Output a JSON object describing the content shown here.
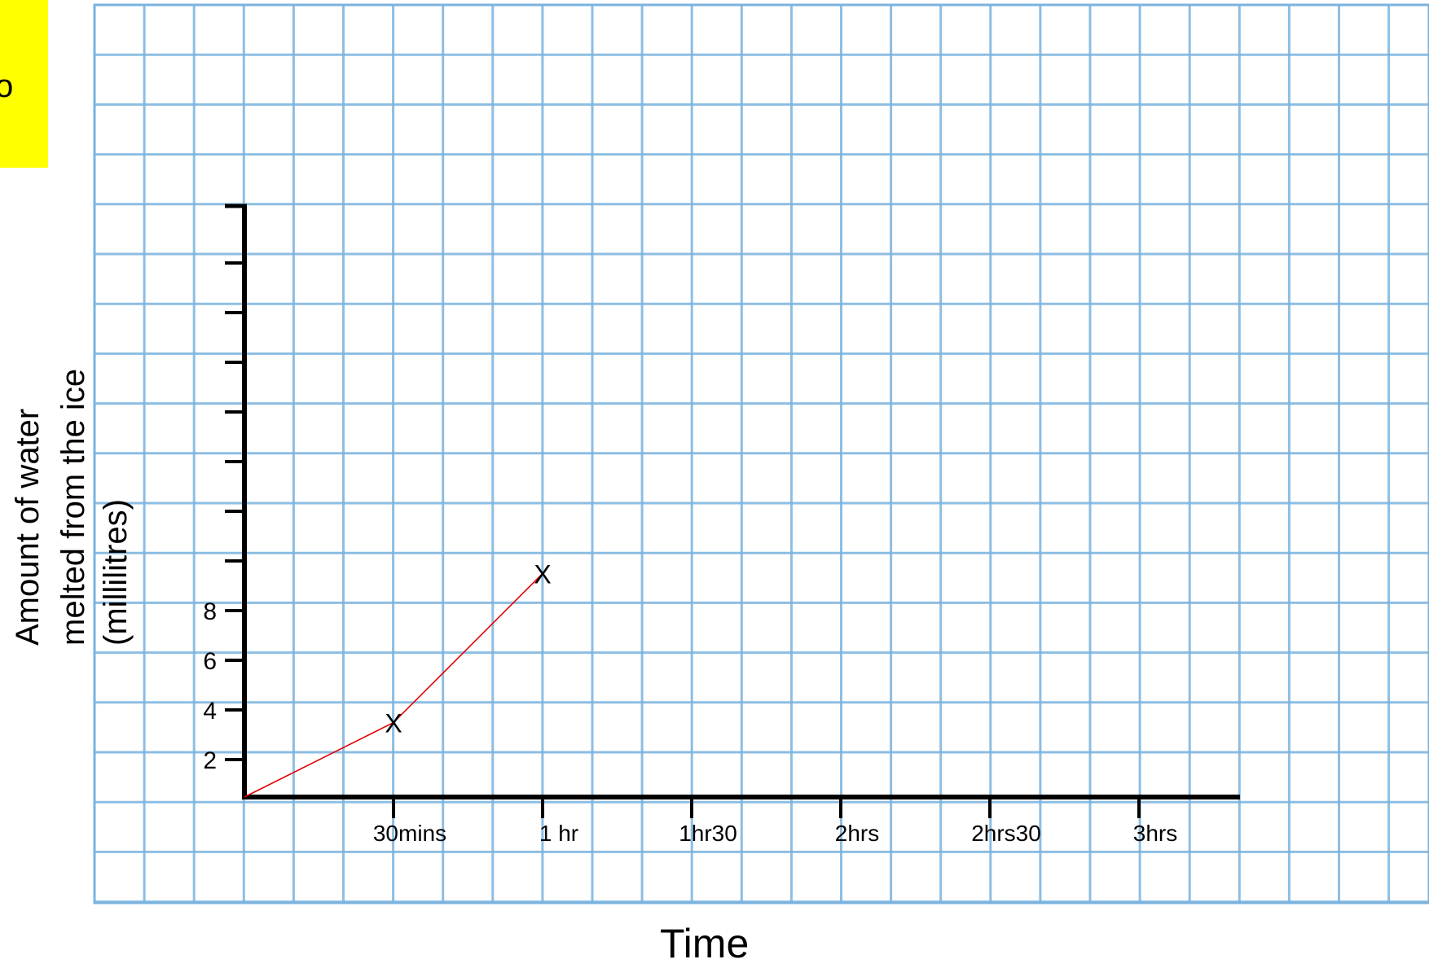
{
  "note": {
    "text": "o"
  },
  "chart_data": {
    "type": "line",
    "title": "",
    "xlabel": "Time",
    "ylabel_lines": [
      "Amount of water",
      "melted from the ice",
      "(millilitres)"
    ],
    "x_tick_labels": [
      "30mins",
      "1 hr",
      "1hr30",
      "2hrs",
      "2hrs30",
      "3hrs"
    ],
    "x_tick_minutes": [
      30,
      60,
      90,
      120,
      150,
      180
    ],
    "y_tick_labels": [
      "2",
      "4",
      "6",
      "8"
    ],
    "y_tick_values": [
      2,
      4,
      6,
      8
    ],
    "y_unlabeled_ticks": [
      10,
      12,
      14,
      16,
      18,
      20,
      22
    ],
    "xlim_minutes": [
      0,
      200
    ],
    "ylim": [
      0,
      23
    ],
    "grid": true,
    "series": [
      {
        "x_minutes": [
          0,
          30,
          60
        ],
        "y": [
          0,
          3,
          9
        ],
        "marker": "x",
        "color": "#e00000"
      }
    ],
    "marker_label": "X",
    "colors": {
      "grid": "#7ab3df",
      "axis": "#000000",
      "line": "#e00000"
    }
  }
}
